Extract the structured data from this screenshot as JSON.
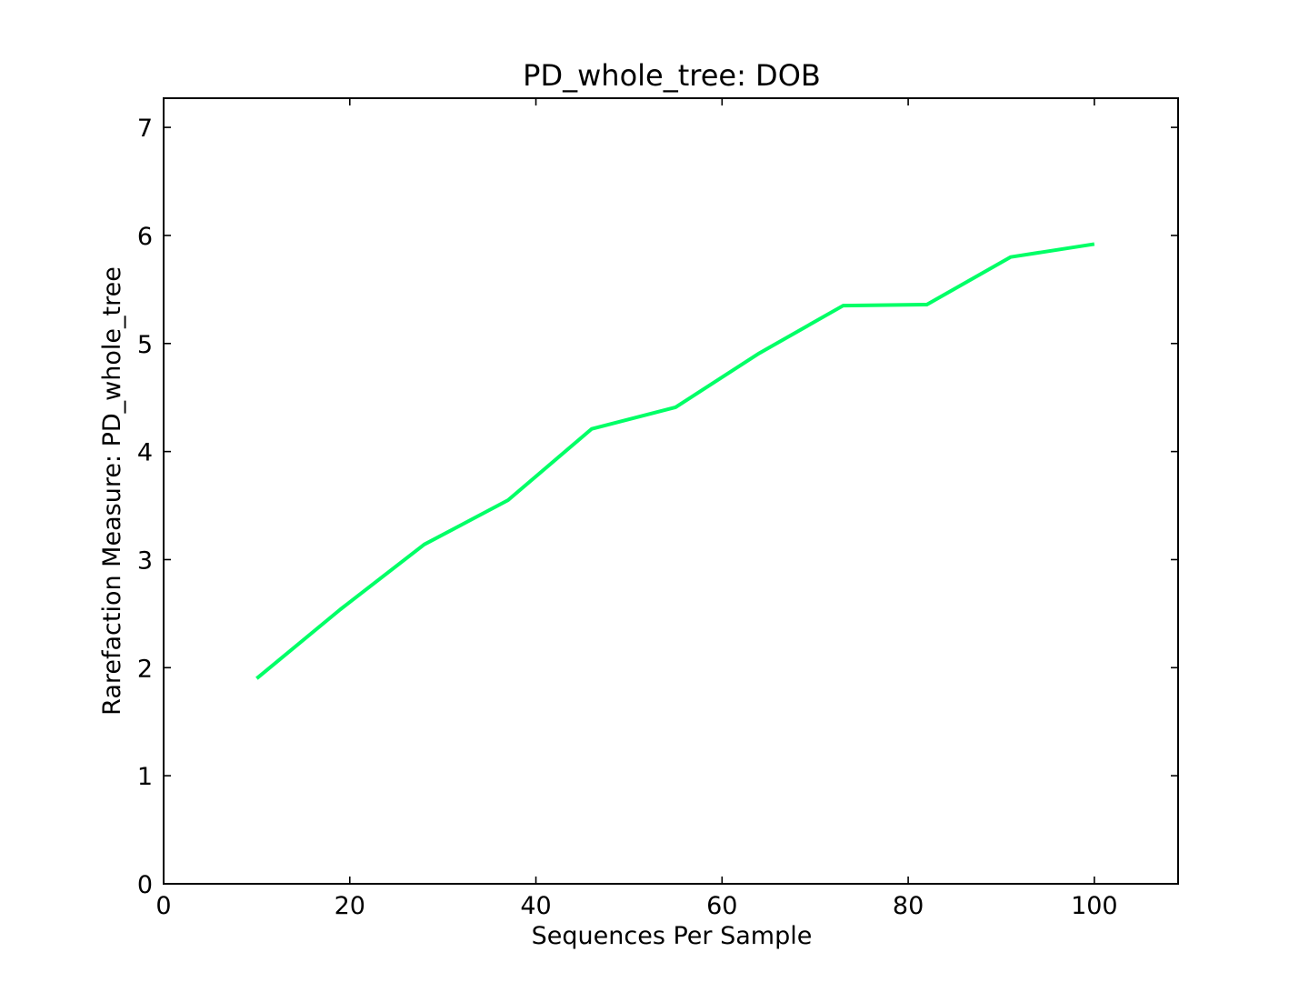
{
  "chart_data": {
    "type": "line",
    "title": "PD_whole_tree: DOB",
    "xlabel": "Sequences Per Sample",
    "ylabel": "Rarefaction Measure: PD_whole_tree",
    "xlim": [
      0,
      109
    ],
    "ylim": [
      0,
      7.27
    ],
    "xticks": [
      0,
      20,
      40,
      60,
      80,
      100
    ],
    "xtick_labels": [
      "0",
      "20",
      "40",
      "60",
      "80",
      "100"
    ],
    "yticks": [
      0,
      1,
      2,
      3,
      4,
      5,
      6,
      7
    ],
    "ytick_labels": [
      "0",
      "1",
      "2",
      "3",
      "4",
      "5",
      "6",
      "7"
    ],
    "grid": false,
    "series": [
      {
        "color": "#00ff66",
        "x": [
          10,
          19,
          28,
          37,
          46,
          55,
          64,
          73,
          82,
          91,
          100
        ],
        "y": [
          1.9,
          2.54,
          3.14,
          3.55,
          4.21,
          4.41,
          4.91,
          5.35,
          5.36,
          5.8,
          5.92
        ]
      }
    ]
  }
}
